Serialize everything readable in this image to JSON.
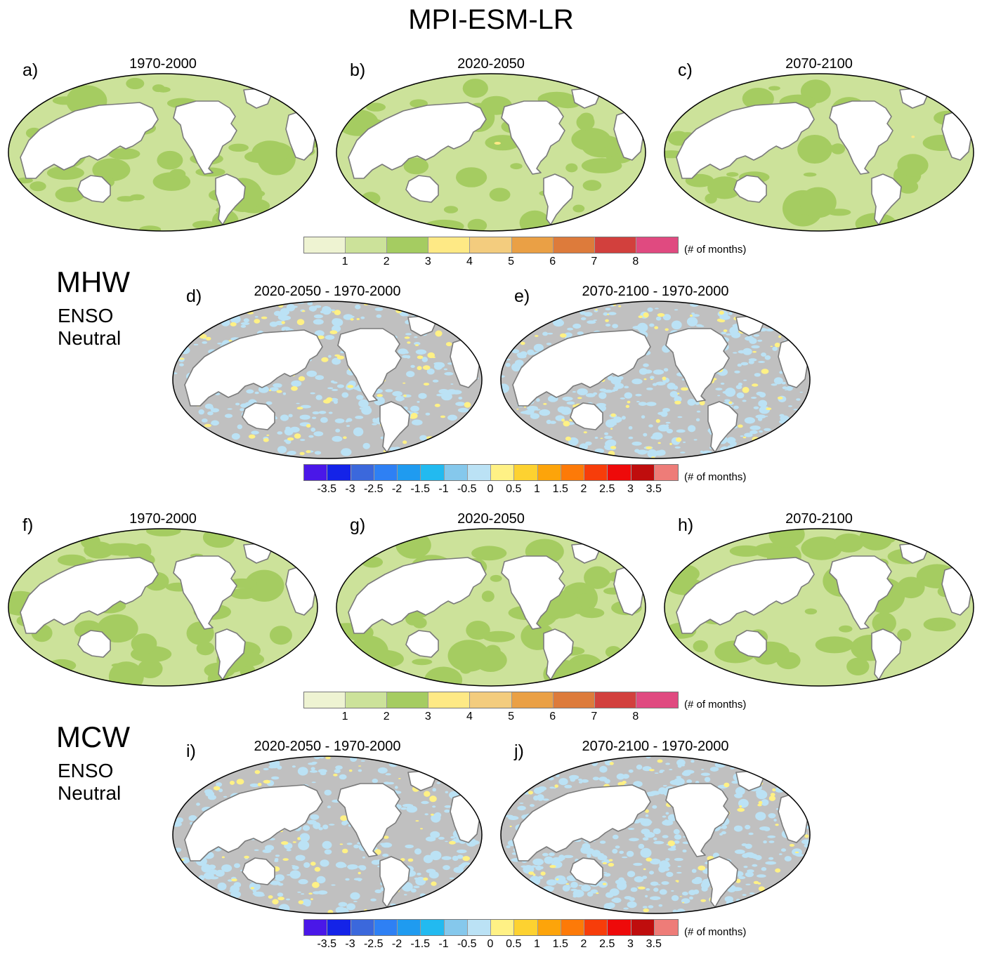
{
  "title": "MPI-ESM-LR",
  "rows": [
    {
      "name": "MHW",
      "sub1": "ENSO",
      "sub2": "Neutral"
    },
    {
      "name": "MCW",
      "sub1": "ENSO",
      "sub2": "Neutral"
    }
  ],
  "panels": [
    {
      "letter": "a)",
      "title": "1970-2000",
      "kind": "abs",
      "mix": [
        0.62,
        0.36,
        0.02
      ]
    },
    {
      "letter": "b)",
      "title": "2020-2050",
      "kind": "abs",
      "mix": [
        0.68,
        0.31,
        0.01
      ]
    },
    {
      "letter": "c)",
      "title": "2070-2100",
      "kind": "abs",
      "mix": [
        0.74,
        0.25,
        0.01
      ]
    },
    {
      "letter": "d)",
      "title": "2020-2050 - 1970-2000",
      "kind": "diff",
      "mix": [
        0.55,
        0.32,
        0.13
      ]
    },
    {
      "letter": "e)",
      "title": "2070-2100 - 1970-2000",
      "kind": "diff",
      "mix": [
        0.45,
        0.43,
        0.12
      ]
    },
    {
      "letter": "f)",
      "title": "1970-2000",
      "kind": "abs",
      "mix": [
        0.58,
        0.41,
        0.01
      ]
    },
    {
      "letter": "g)",
      "title": "2020-2050",
      "kind": "abs",
      "mix": [
        0.62,
        0.38,
        0.0
      ]
    },
    {
      "letter": "h)",
      "title": "2070-2100",
      "kind": "abs",
      "mix": [
        0.64,
        0.36,
        0.0
      ]
    },
    {
      "letter": "i)",
      "title": "2020-2050 - 1970-2000",
      "kind": "diff",
      "mix": [
        0.55,
        0.33,
        0.12
      ]
    },
    {
      "letter": "j)",
      "title": "2070-2100 - 1970-2000",
      "kind": "diff",
      "mix": [
        0.42,
        0.46,
        0.12
      ]
    }
  ],
  "colorbars": {
    "abs": {
      "units": "(# of months)",
      "colors": [
        "#eef3d2",
        "#cce29a",
        "#a5cc61",
        "#fee985",
        "#f3cc7e",
        "#eaa045",
        "#dd7b3b",
        "#d2403d",
        "#e04a80"
      ],
      "ticks": [
        "1",
        "2",
        "3",
        "4",
        "5",
        "6",
        "7",
        "8"
      ]
    },
    "diff": {
      "units": "(# of months)",
      "colors": [
        "#4a17e8",
        "#1423e8",
        "#3b68dc",
        "#2e80f4",
        "#1f9bf0",
        "#22baf0",
        "#85c8ec",
        "#bbe2f5",
        "#fff185",
        "#fdd230",
        "#fda40a",
        "#fd7a08",
        "#f73d0a",
        "#ee0a0a",
        "#bf0d0d",
        "#ee7c78"
      ],
      "ticks": [
        "-3.5",
        "-3",
        "-2.5",
        "-2",
        "-1.5",
        "-1",
        "-0.5",
        "0",
        "0.5",
        "1",
        "1.5",
        "2",
        "2.5",
        "3",
        "3.5"
      ]
    }
  },
  "map_colors": {
    "abs": [
      "#cce29a",
      "#a5cc61",
      "#fee985"
    ],
    "diff": [
      "#c0c0c0",
      "#bbe2f5",
      "#fff185"
    ],
    "land": "#ffffff",
    "coast": "#7a7a7a"
  }
}
